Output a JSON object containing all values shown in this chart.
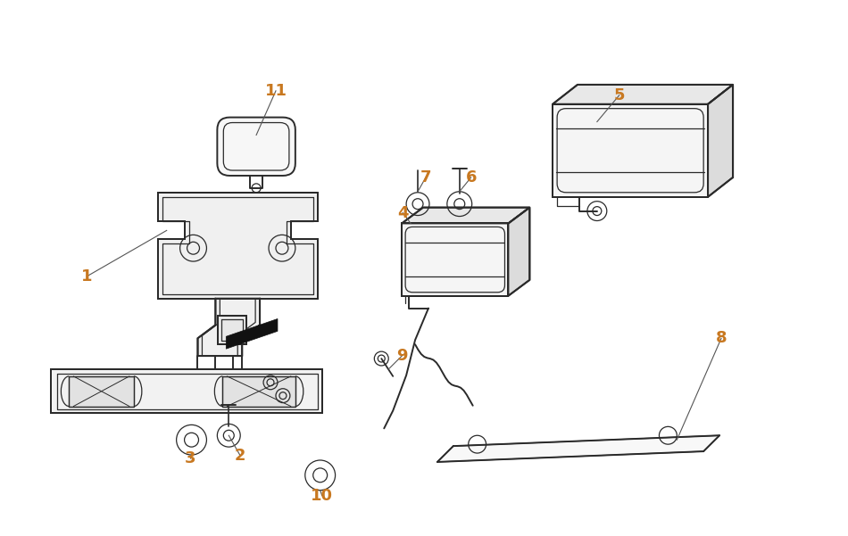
{
  "bg_color": "#ffffff",
  "line_color": "#2a2a2a",
  "label_color": "#c87820",
  "label_fontsize": 13,
  "figsize": [
    9.5,
    6.01
  ],
  "dpi": 100
}
